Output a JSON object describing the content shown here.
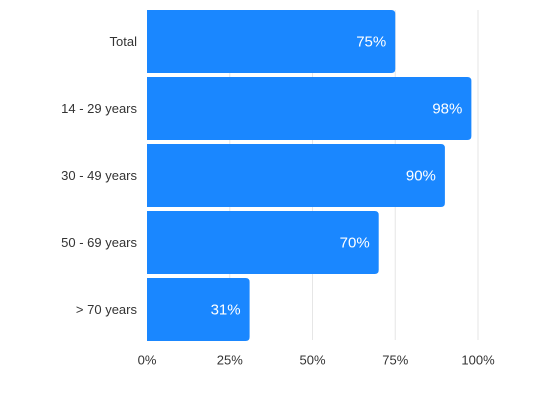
{
  "chart_data": {
    "type": "bar",
    "orientation": "horizontal",
    "categories": [
      "Total",
      "14 - 29 years",
      "30 - 49 years",
      "50 - 69 years",
      "> 70 years"
    ],
    "values": [
      75,
      98,
      90,
      70,
      31
    ],
    "data_labels": [
      "75%",
      "98%",
      "90%",
      "70%",
      "31%"
    ],
    "x_ticks": [
      0,
      25,
      50,
      75,
      100
    ],
    "x_tick_labels": [
      "0%",
      "25%",
      "50%",
      "75%",
      "100%"
    ],
    "xlim": [
      0,
      100
    ],
    "title": "",
    "xlabel": "",
    "ylabel": "",
    "grid": "vertical",
    "legend": "none",
    "bar_color": "#1a87ff",
    "grid_color": "#e6e6e6"
  }
}
